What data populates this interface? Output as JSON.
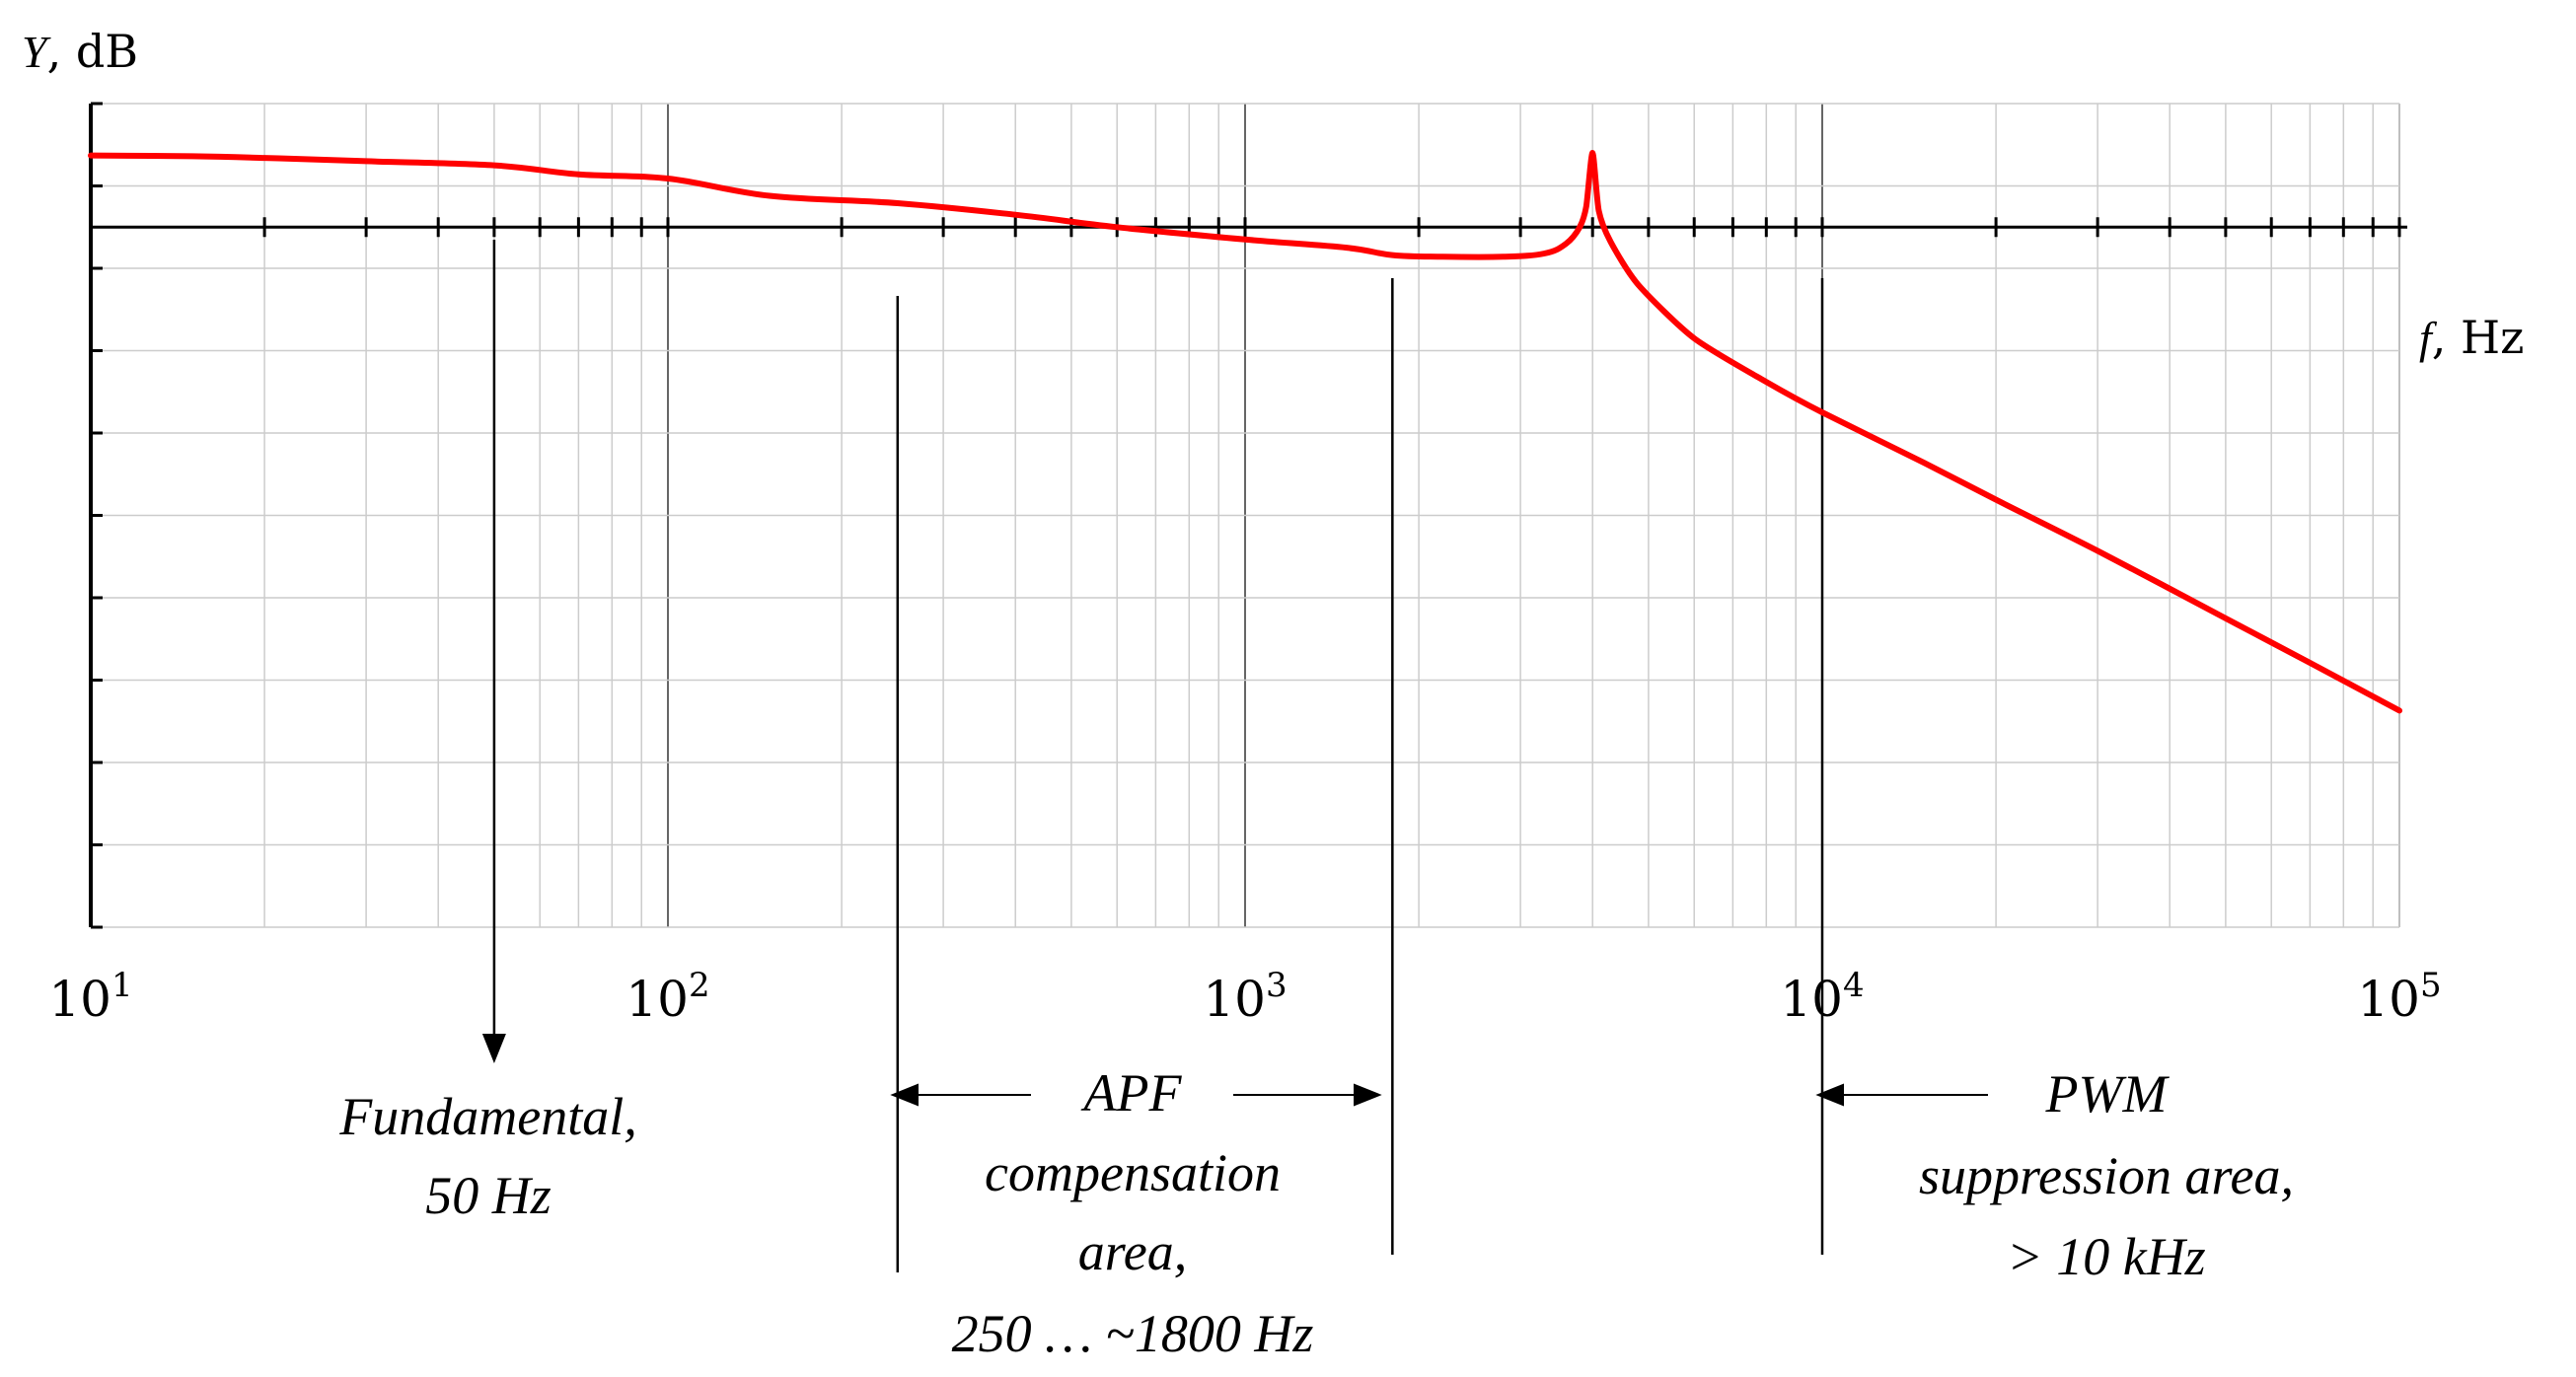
{
  "chart_data": {
    "type": "line",
    "x_scale": "log",
    "xlim": [
      10,
      100000
    ],
    "ylim": [
      -85,
      15
    ],
    "grid": true,
    "y_label_symbol": "Y",
    "y_label_unit": ", dB",
    "x_label_symbol": "f",
    "x_label_unit": ", Hz",
    "x_major_ticks": [
      {
        "base": "10",
        "exp": "1",
        "value": 10
      },
      {
        "base": "10",
        "exp": "2",
        "value": 100
      },
      {
        "base": "10",
        "exp": "3",
        "value": 1000
      },
      {
        "base": "10",
        "exp": "4",
        "value": 10000
      },
      {
        "base": "10",
        "exp": "5",
        "value": 100000
      }
    ],
    "y_ticks": [
      15,
      5,
      -5,
      -15,
      -25,
      -35,
      -45,
      -55,
      -65,
      -75,
      -85
    ],
    "series": [
      {
        "name": "Y",
        "color": "#ff0000",
        "x": [
          10,
          15,
          20,
          30,
          50,
          70,
          100,
          150,
          250,
          400,
          600,
          1000,
          1500,
          1800,
          2200,
          2800,
          3300,
          3600,
          3800,
          3900,
          4000,
          4100,
          4300,
          4800,
          6000,
          8000,
          10000,
          15000,
          20000,
          30000,
          50000,
          70000,
          100000
        ],
        "y": [
          8.7,
          8.6,
          8.4,
          8.0,
          7.5,
          6.4,
          5.9,
          3.8,
          2.9,
          1.5,
          0.0,
          -1.5,
          -2.5,
          -3.4,
          -3.6,
          -3.6,
          -3.2,
          -2.0,
          0.0,
          2.5,
          9.0,
          2.0,
          -1.8,
          -7.0,
          -13.5,
          -18.8,
          -22.5,
          -28.6,
          -33.1,
          -39.3,
          -47.5,
          -52.9,
          -58.7
        ]
      }
    ],
    "markers": [
      {
        "name": "fundamental",
        "x": 50,
        "line": "arrow-down"
      },
      {
        "name": "apf-start",
        "x": 250,
        "line": "line"
      },
      {
        "name": "apf-end",
        "x": 1800,
        "line": "line"
      },
      {
        "name": "pwm-start",
        "x": 10000,
        "line": "line"
      }
    ],
    "annotations": {
      "fundamental": {
        "lines": [
          "Fundamental,",
          "50 Hz"
        ]
      },
      "apf": {
        "lines": [
          "APF",
          "compensation",
          "area,",
          "250 … ~1800 Hz"
        ]
      },
      "pwm": {
        "lines": [
          "PWM",
          "suppression area,",
          "> 10 kHz"
        ]
      }
    }
  }
}
